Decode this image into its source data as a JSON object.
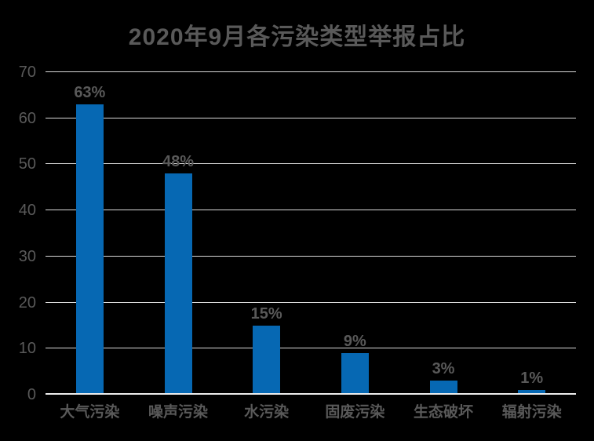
{
  "page": {
    "background": "#000000"
  },
  "chart_data": {
    "type": "bar",
    "title": "2020年9月各污染类型举报占比",
    "categories": [
      "大气污染",
      "噪声污染",
      "水污染",
      "固废污染",
      "生态破坏",
      "辐射污染"
    ],
    "values": [
      63,
      48,
      15,
      9,
      3,
      1
    ],
    "data_labels": [
      "63%",
      "48%",
      "15%",
      "9%",
      "3%",
      "1%"
    ],
    "xlabel": "",
    "ylabel": "",
    "ylim": [
      0,
      70
    ],
    "yticks": [
      0,
      10,
      20,
      30,
      40,
      50,
      60,
      70
    ],
    "grid": "horizontal gridlines on, vertical off",
    "legend": "none",
    "colors": {
      "bar": "#0668b3",
      "text": "#595959",
      "gridline": "#d9d9d9",
      "axis_line": "#ededed",
      "background": "#000000"
    }
  }
}
